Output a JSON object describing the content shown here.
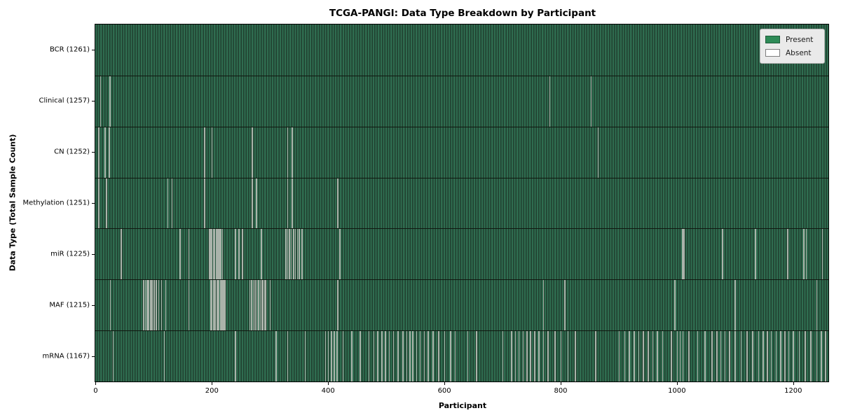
{
  "title": "TCGA-PANGI: Data Type Breakdown by Participant",
  "xlabel": "Participant",
  "ylabel": "Data Type (Total Sample Count)",
  "legend": [
    {
      "label": "Present",
      "color": "#2e8b57"
    },
    {
      "label": "Absent",
      "color": "#ffffff"
    }
  ],
  "colors": {
    "present": "#2e8b57",
    "absent": "#ffffff",
    "bar_stripe_light": "#2f6d50",
    "bar_stripe_dark": "#20402f",
    "absent_line": "#aab3aa",
    "legend_bg": "#eaeaea"
  },
  "chart_data": {
    "type": "heatmap",
    "x_axis": {
      "label": "Participant",
      "ticks": [
        0,
        200,
        400,
        600,
        800,
        1000,
        1200
      ],
      "range": [
        -0.5,
        1260.5
      ]
    },
    "n_participants": 1261,
    "rows": [
      {
        "label": "BCR (1261)",
        "data_type": "BCR",
        "total": 1261,
        "absent": []
      },
      {
        "label": "Clinical (1257)",
        "data_type": "Clinical",
        "total": 1257,
        "absent": [
          8,
          24,
          781,
          852
        ]
      },
      {
        "label": "CN (1252)",
        "data_type": "CN",
        "total": 1252,
        "absent": [
          5,
          16,
          23,
          187,
          200,
          269,
          330,
          338,
          864
        ]
      },
      {
        "label": "Methylation (1251)",
        "data_type": "Methylation",
        "total": 1251,
        "absent": [
          5,
          18,
          124,
          131,
          187,
          269,
          276,
          330,
          338,
          416
        ]
      },
      {
        "label": "miR (1225)",
        "data_type": "miR",
        "total": 1225,
        "absent": [
          44,
          145,
          160,
          195,
          197,
          199,
          202,
          204,
          207,
          209,
          211,
          213,
          215,
          218,
          240,
          246,
          252,
          285,
          327,
          330,
          333,
          336,
          340,
          343,
          347,
          350,
          355,
          420,
          1009,
          1012,
          1078,
          1135,
          1190,
          1218,
          1222,
          1250
        ]
      },
      {
        "label": "MAF (1215)",
        "data_type": "MAF",
        "total": 1215,
        "absent": [
          25,
          82,
          85,
          88,
          91,
          94,
          97,
          100,
          104,
          108,
          113,
          120,
          160,
          198,
          200,
          202,
          204,
          206,
          208,
          210,
          212,
          214,
          216,
          218,
          220,
          221,
          222,
          265,
          268,
          271,
          274,
          277,
          280,
          283,
          286,
          288,
          290,
          291,
          292,
          300,
          416,
          770,
          807,
          996,
          1100,
          1240
        ]
      },
      {
        "label": "mRNA (1167)",
        "data_type": "mRNA",
        "total": 1167,
        "absent": [
          30,
          118,
          240,
          310,
          330,
          360,
          395,
          400,
          405,
          410,
          415,
          425,
          440,
          455,
          470,
          478,
          485,
          492,
          498,
          505,
          512,
          520,
          528,
          535,
          540,
          545,
          552,
          558,
          565,
          572,
          580,
          590,
          600,
          610,
          618,
          640,
          655,
          700,
          715,
          722,
          728,
          735,
          742,
          748,
          755,
          762,
          770,
          778,
          790,
          800,
          812,
          825,
          860,
          900,
          910,
          918,
          926,
          934,
          942,
          950,
          958,
          966,
          975,
          990,
          1000,
          1005,
          1010,
          1020,
          1035,
          1048,
          1060,
          1068,
          1075,
          1082,
          1090,
          1100,
          1110,
          1120,
          1130,
          1140,
          1148,
          1155,
          1162,
          1170,
          1178,
          1185,
          1192,
          1200,
          1210,
          1220,
          1230,
          1240,
          1248,
          1255
        ]
      }
    ]
  }
}
